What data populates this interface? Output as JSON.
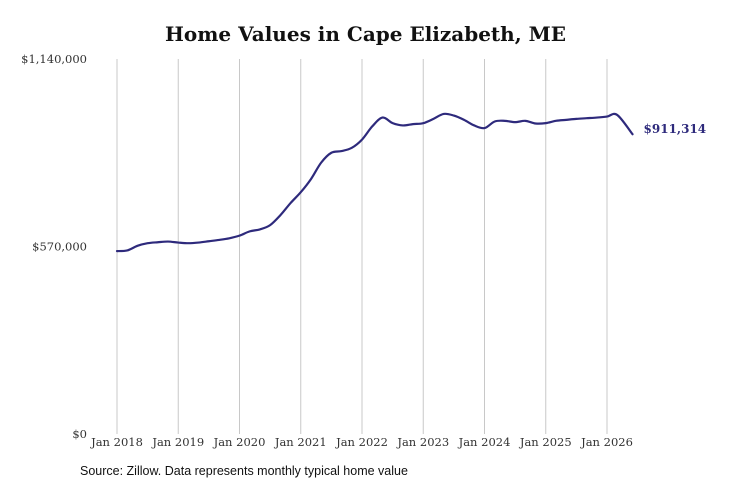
{
  "chart_data": {
    "type": "line",
    "title": "Home Values in Cape Elizabeth, ME",
    "xlabel": "",
    "ylabel": "",
    "ylim": [
      0,
      1140000
    ],
    "xlim": [
      "2018-01",
      "2026-06"
    ],
    "y_ticks": [
      "$0",
      "$570,000",
      "$1,140,000"
    ],
    "x_ticks": [
      "Jan 2018",
      "Jan 2019",
      "Jan 2020",
      "Jan 2021",
      "Jan 2022",
      "Jan 2023",
      "Jan 2024",
      "Jan 2025",
      "Jan 2026"
    ],
    "grid": "vertical",
    "line_color": "#2e2a7c",
    "end_label": "$911,314",
    "series": [
      {
        "x": [
          "2018-01",
          "2018-03",
          "2018-05",
          "2018-07",
          "2018-09",
          "2018-11",
          "2019-01",
          "2019-03",
          "2019-05",
          "2019-07",
          "2019-09",
          "2019-11",
          "2020-01",
          "2020-03",
          "2020-05",
          "2020-07",
          "2020-09",
          "2020-11",
          "2021-01",
          "2021-03",
          "2021-05",
          "2021-07",
          "2021-09",
          "2021-11",
          "2022-01",
          "2022-03",
          "2022-05",
          "2022-07",
          "2022-09",
          "2022-11",
          "2023-01",
          "2023-03",
          "2023-05",
          "2023-07",
          "2023-09",
          "2023-11",
          "2024-01",
          "2024-03",
          "2024-05",
          "2024-07",
          "2024-09",
          "2024-11",
          "2025-01",
          "2025-03",
          "2025-05",
          "2025-07",
          "2025-09",
          "2025-11",
          "2026-01",
          "2026-03",
          "2026-06"
        ],
        "values": [
          556000,
          558000,
          572000,
          580000,
          583000,
          585000,
          582000,
          580000,
          582000,
          586000,
          590000,
          595000,
          603000,
          616000,
          622000,
          635000,
          665000,
          702000,
          735000,
          775000,
          825000,
          855000,
          860000,
          870000,
          895000,
          935000,
          962000,
          945000,
          938000,
          942000,
          945000,
          958000,
          973000,
          968000,
          955000,
          938000,
          930000,
          950000,
          952000,
          948000,
          952000,
          944000,
          945000,
          952000,
          955000,
          958000,
          960000,
          962000,
          965000,
          970000,
          911314
        ]
      }
    ]
  },
  "source": "Source: Zillow. Data represents monthly typical home value"
}
